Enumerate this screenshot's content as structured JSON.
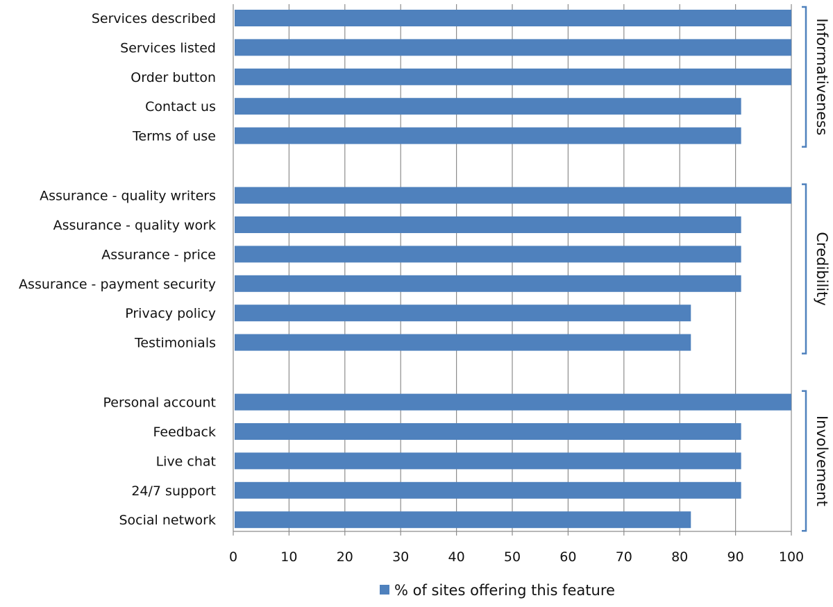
{
  "chart_data": {
    "type": "bar",
    "orientation": "horizontal",
    "series": [
      {
        "name": "% of sites offering this feature",
        "color": "#4f81bd"
      }
    ],
    "groups": [
      {
        "label": "Informativeness",
        "items": [
          {
            "category": "Services described",
            "value": 100
          },
          {
            "category": "Services listed",
            "value": 100
          },
          {
            "category": "Order button",
            "value": 100
          },
          {
            "category": "Contact us",
            "value": 91
          },
          {
            "category": "Terms of use",
            "value": 91
          }
        ]
      },
      {
        "label": "Credibility",
        "items": [
          {
            "category": "Assurance - quality writers",
            "value": 100
          },
          {
            "category": "Assurance - quality work",
            "value": 91
          },
          {
            "category": "Assurance - price",
            "value": 91
          },
          {
            "category": "Assurance - payment security",
            "value": 91
          },
          {
            "category": "Privacy policy",
            "value": 82
          },
          {
            "category": "Testimonials",
            "value": 82
          }
        ]
      },
      {
        "label": "Involvement",
        "items": [
          {
            "category": "Personal account",
            "value": 100
          },
          {
            "category": "Feedback",
            "value": 91
          },
          {
            "category": "Live chat",
            "value": 91
          },
          {
            "category": "24/7 support",
            "value": 91
          },
          {
            "category": "Social network",
            "value": 82
          }
        ]
      }
    ],
    "xlim": [
      0,
      100
    ],
    "xticks": [
      0,
      10,
      20,
      30,
      40,
      50,
      60,
      70,
      80,
      90,
      100
    ],
    "grid": true,
    "legend_position": "bottom"
  }
}
